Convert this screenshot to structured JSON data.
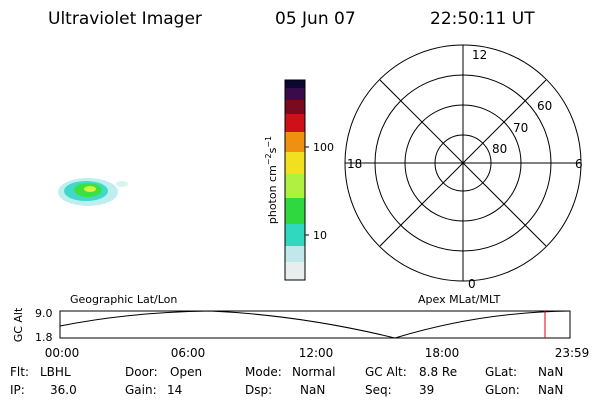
{
  "header": {
    "instrument": "Ultraviolet Imager",
    "date": "05 Jun 07",
    "time": "22:50:11 UT"
  },
  "colorbar": {
    "label": "photon cm",
    "exp1": "−2",
    "mid": "s",
    "exp2": "−1",
    "ticks": [
      "100",
      "10"
    ]
  },
  "polar": {
    "mlt": {
      "top": "12",
      "left": "18",
      "right": "6",
      "bottom": "0"
    },
    "lat": [
      "60",
      "70",
      "80"
    ]
  },
  "orbit": {
    "left_title": "Geographic Lat/Lon",
    "right_title": "Apex MLat/MLT",
    "ylabel": "GC Alt",
    "yticks": [
      "9.0",
      "1.8"
    ],
    "xticks": [
      "00:00",
      "06:00",
      "12:00",
      "18:00",
      "23:59"
    ]
  },
  "info": [
    [
      {
        "label": "Flt:",
        "value": "LBHL"
      },
      {
        "label": "Door:",
        "value": "Open"
      },
      {
        "label": "Mode:",
        "value": "Normal"
      },
      {
        "label": "GC Alt:",
        "value": "8.8 Re"
      },
      {
        "label": "GLat:",
        "value": "NaN"
      }
    ],
    [
      {
        "label": "IP:",
        "value": "36.0"
      },
      {
        "label": "Gain:",
        "value": "14"
      },
      {
        "label": "Dsp:",
        "value": "NaN"
      },
      {
        "label": "Seq:",
        "value": "39"
      },
      {
        "label": "GLon:",
        "value": "NaN"
      }
    ]
  ]
}
